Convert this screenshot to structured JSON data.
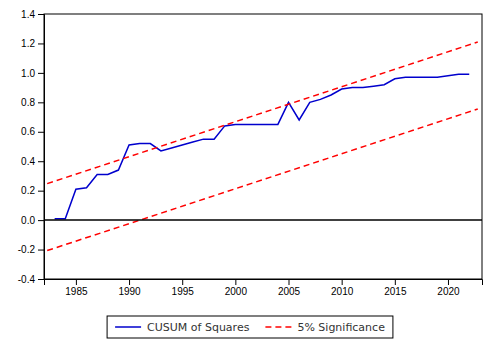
{
  "chart_data": {
    "type": "line",
    "x": [
      1983,
      1984,
      1985,
      1986,
      1987,
      1988,
      1989,
      1990,
      1991,
      1992,
      1993,
      1994,
      1995,
      1996,
      1997,
      1998,
      1999,
      2000,
      2001,
      2002,
      2003,
      2004,
      2005,
      2006,
      2007,
      2008,
      2009,
      2010,
      2011,
      2012,
      2013,
      2014,
      2015,
      2016,
      2017,
      2018,
      2019,
      2020,
      2021,
      2022
    ],
    "series": [
      {
        "name": "CUSUM of Squares",
        "color": "#0000CD",
        "line_style": "solid",
        "values": [
          0.01,
          0.01,
          0.21,
          0.22,
          0.31,
          0.31,
          0.34,
          0.51,
          0.52,
          0.52,
          0.47,
          0.49,
          0.51,
          0.53,
          0.55,
          0.55,
          0.64,
          0.65,
          0.65,
          0.65,
          0.65,
          0.65,
          0.8,
          0.68,
          0.8,
          0.82,
          0.85,
          0.89,
          0.9,
          0.9,
          0.91,
          0.92,
          0.96,
          0.97,
          0.97,
          0.97,
          0.97,
          0.98,
          0.99,
          0.99
        ]
      },
      {
        "name": "5% Significance",
        "color": "#FF0000",
        "line_style": "dashed",
        "x": [
          1982.3,
          2022.8
        ],
        "values": [
          0.248,
          1.21
        ]
      },
      {
        "name": "5% Significance",
        "color": "#FF0000",
        "line_style": "dashed",
        "x": [
          1982.3,
          2022.8
        ],
        "values": [
          -0.207,
          0.755
        ]
      },
      {
        "color": "#000000",
        "line_style": "solid",
        "x": [
          1982.0,
          2023.2
        ],
        "values": [
          0,
          0
        ]
      }
    ],
    "xlim": [
      1982.0,
      2023.2
    ],
    "ylim": [
      -0.4,
      1.4
    ],
    "xticks": [
      1985,
      1990,
      1995,
      2000,
      2005,
      2010,
      2015,
      2020
    ],
    "yticks": [
      -0.4,
      -0.2,
      {
        "value": 0.0,
        "label": "0.0"
      },
      0.2,
      0.4,
      0.6,
      0.8,
      {
        "value": 1.0,
        "label": "1.0"
      },
      1.2,
      1.4
    ],
    "grid": false,
    "legend": "bottom"
  }
}
